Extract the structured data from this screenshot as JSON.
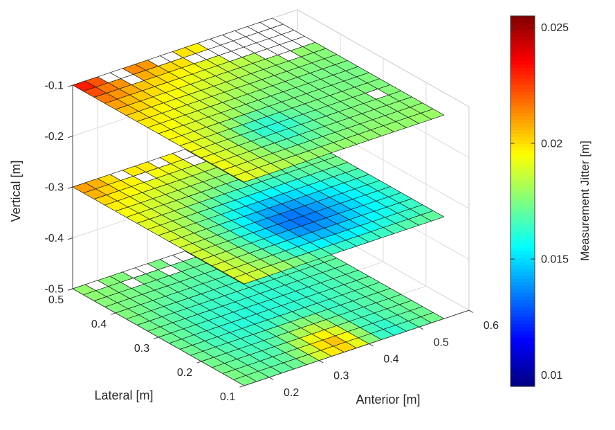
{
  "figure": {
    "title": "",
    "background": "#ffffff",
    "colors": {
      "mesh_edge": "#1b1b1b",
      "nan_cell": "#ffffff",
      "grid_line": "#dadada",
      "box_edge": "#cfcfcf",
      "axis_ruler": "#3f3f3f",
      "text": "#262626"
    }
  },
  "chart_data": {
    "type": "heatmap",
    "subtype": "3d_horizontal_slice_surfaces",
    "title": "",
    "view": {
      "azimuth_deg": -37.5,
      "elevation_deg": 30
    },
    "axes": {
      "x": {
        "label": "Anterior [m]",
        "ticks": [
          0.2,
          0.3,
          0.4,
          0.5,
          0.6
        ],
        "lim": [
          0.15,
          0.6
        ]
      },
      "y": {
        "label": "Lateral [m]",
        "ticks": [
          0.1,
          0.2,
          0.3,
          0.4,
          0.5
        ],
        "lim": [
          0.1,
          0.5
        ]
      },
      "z": {
        "label": "Vertical [m]",
        "ticks": [
          -0.5,
          -0.4,
          -0.3,
          -0.2,
          -0.1
        ],
        "lim": [
          -0.5,
          -0.1
        ]
      }
    },
    "colorbar": {
      "label": "Measurement Jitter [m]",
      "ticks": [
        0.01,
        0.015,
        0.02,
        0.025
      ],
      "clim": [
        0.0095,
        0.0255
      ],
      "colormap": "jet",
      "location": "right"
    },
    "grid_cells": {
      "n_rows": 16,
      "n_cols": 16,
      "row0_lateral_edge": 0.5,
      "lateral_step": -0.025,
      "col0_anterior_edge": 0.15,
      "anterior_step": 0.025,
      "row_order": "lateral descending (0.5 -> 0.1)",
      "col_order": "anterior ascending (0.15 -> 0.55)",
      "null_means": "no data (white cell)"
    },
    "slices": [
      {
        "vertical_m": -0.1,
        "values": [
          [
            0.0231,
            0.0222,
            null,
            null,
            0.0213,
            0.0211,
            null,
            null,
            0.0199,
            0.0197,
            null,
            null,
            null,
            null,
            null,
            null
          ],
          [
            0.0223,
            0.0216,
            0.0212,
            null,
            0.0208,
            0.0204,
            0.0201,
            0.0199,
            null,
            null,
            null,
            null,
            null,
            null,
            null,
            null
          ],
          [
            0.0216,
            0.0212,
            0.0208,
            0.0204,
            0.0201,
            0.0199,
            0.0196,
            0.0194,
            0.0191,
            0.0189,
            null,
            null,
            null,
            null,
            null,
            null
          ],
          [
            0.021,
            0.0206,
            0.0203,
            0.02,
            0.0197,
            0.0195,
            0.0192,
            0.019,
            0.0188,
            0.0186,
            0.0184,
            0.0182,
            null,
            null,
            null,
            null
          ],
          [
            0.0205,
            0.0202,
            0.0199,
            0.0196,
            0.0194,
            0.0191,
            0.0189,
            0.0187,
            0.0185,
            0.0183,
            0.0181,
            0.018,
            0.0179,
            null,
            0.0178,
            0.0177
          ],
          [
            0.0201,
            0.0198,
            0.0196,
            0.0193,
            0.0191,
            0.0188,
            0.0186,
            0.0184,
            0.0182,
            0.018,
            0.0179,
            0.0178,
            0.0177,
            0.0177,
            0.0176,
            0.0176
          ],
          [
            0.0198,
            0.0196,
            0.0193,
            0.019,
            0.0188,
            0.0186,
            0.0183,
            0.0181,
            0.018,
            0.0178,
            0.0177,
            0.0176,
            0.0176,
            0.0175,
            0.0175,
            0.0175
          ],
          [
            0.0196,
            0.0194,
            0.0191,
            0.0188,
            0.0185,
            0.0183,
            0.018,
            0.0178,
            0.0177,
            0.0176,
            0.0175,
            0.0175,
            0.0174,
            0.0174,
            0.0174,
            0.0174
          ],
          [
            0.0195,
            0.0192,
            0.0189,
            0.0186,
            0.0183,
            0.018,
            0.0177,
            0.0175,
            0.0174,
            0.0174,
            0.0174,
            0.0174,
            0.0174,
            0.0174,
            0.0174,
            0.0174
          ],
          [
            0.0194,
            0.0191,
            0.0187,
            0.0183,
            0.0178,
            0.0173,
            0.017,
            0.0171,
            0.0173,
            0.0174,
            0.0174,
            0.0174,
            0.0174,
            0.0174,
            0.0174,
            0.0175
          ],
          [
            0.0193,
            0.0189,
            0.0185,
            0.0179,
            0.0171,
            0.0165,
            0.0163,
            0.0166,
            0.017,
            0.0172,
            0.0174,
            0.0174,
            0.0175,
            0.0175,
            0.0175,
            0.0175
          ],
          [
            0.0192,
            0.0188,
            0.0184,
            0.0177,
            0.0169,
            0.0163,
            0.0161,
            0.0164,
            0.0168,
            0.0171,
            0.0173,
            0.0174,
            0.0175,
            0.0175,
            null,
            0.0176
          ],
          [
            0.0192,
            0.0188,
            0.0184,
            0.0178,
            0.0171,
            0.0166,
            0.0164,
            0.0167,
            0.017,
            0.0173,
            0.0174,
            0.0175,
            0.0175,
            0.0176,
            0.0176,
            0.0176
          ],
          [
            0.0192,
            0.0188,
            0.0184,
            0.0179,
            0.0174,
            0.017,
            0.0168,
            0.017,
            0.0172,
            0.0174,
            0.0175,
            0.0176,
            0.0176,
            0.0176,
            0.0177,
            0.0177
          ],
          [
            0.0191,
            0.0188,
            0.0185,
            0.0181,
            0.0178,
            0.0175,
            0.0173,
            0.0174,
            0.0175,
            0.0176,
            0.0176,
            0.0177,
            0.0177,
            0.0177,
            0.0178,
            0.0178
          ],
          [
            0.0191,
            0.0189,
            0.0186,
            0.0183,
            0.0181,
            0.0179,
            0.0178,
            0.0178,
            0.0178,
            0.0178,
            0.0178,
            0.0178,
            0.0178,
            0.0178,
            0.0179,
            0.0179
          ]
        ]
      },
      {
        "vertical_m": -0.3,
        "values": [
          [
            0.021,
            0.0207,
            0.02,
            null,
            0.0198,
            0.0198,
            null,
            0.0196,
            null,
            null,
            null,
            null,
            null,
            null,
            null,
            null
          ],
          [
            0.0207,
            0.0202,
            0.0198,
            0.0196,
            null,
            0.0194,
            0.0192,
            0.0191,
            null,
            0.0188,
            null,
            null,
            null,
            null,
            null,
            null
          ],
          [
            0.0201,
            0.0198,
            0.0195,
            0.0193,
            0.0191,
            0.0189,
            0.0188,
            0.0186,
            0.0185,
            0.0183,
            null,
            null,
            0.018,
            null,
            null,
            null
          ],
          [
            0.0197,
            0.0194,
            0.0191,
            0.0189,
            0.0187,
            0.0185,
            0.0183,
            0.0181,
            0.018,
            0.0179,
            0.0178,
            0.0177,
            null,
            null,
            0.0176,
            0.0176
          ],
          [
            0.0194,
            0.0191,
            0.0188,
            0.0186,
            0.0183,
            0.0181,
            0.0179,
            0.0177,
            0.0176,
            0.0175,
            0.0174,
            0.0173,
            0.0173,
            0.0173,
            0.0174,
            0.0174
          ],
          [
            0.0192,
            0.0189,
            0.0186,
            0.0183,
            0.018,
            0.0177,
            0.0174,
            0.0172,
            0.017,
            0.0169,
            0.0169,
            0.0169,
            0.017,
            0.0171,
            0.0172,
            0.0173
          ],
          [
            0.019,
            0.0187,
            0.0183,
            0.0179,
            0.0174,
            0.017,
            0.0166,
            0.0164,
            0.0163,
            0.0163,
            0.0164,
            0.0166,
            0.0168,
            0.017,
            0.0172,
            0.0173
          ],
          [
            0.0189,
            0.0185,
            0.0181,
            0.0175,
            0.017,
            0.0164,
            0.0159,
            0.0156,
            0.0154,
            0.0155,
            0.0157,
            0.0159,
            0.0162,
            0.0165,
            0.0167,
            0.0169
          ],
          [
            0.0188,
            0.0184,
            0.0179,
            0.0172,
            0.0166,
            0.0158,
            0.0152,
            0.0148,
            0.0146,
            0.0147,
            0.015,
            0.0153,
            0.0157,
            0.016,
            0.0163,
            0.0166
          ],
          [
            0.0188,
            0.0183,
            0.0177,
            0.017,
            0.0162,
            0.0154,
            0.0146,
            0.0141,
            0.0139,
            0.014,
            0.0144,
            0.0148,
            0.0152,
            0.0156,
            0.016,
            0.0163
          ],
          [
            0.0187,
            0.0182,
            0.0176,
            0.0169,
            0.016,
            0.0151,
            0.0142,
            0.0136,
            0.0134,
            0.0136,
            0.014,
            0.0145,
            0.015,
            0.0154,
            0.0158,
            0.0162
          ],
          [
            0.0187,
            0.0182,
            0.0176,
            0.0168,
            0.016,
            0.015,
            0.0141,
            0.0135,
            0.0133,
            0.0135,
            0.0139,
            0.0144,
            0.0149,
            0.0154,
            0.0158,
            0.0162
          ],
          [
            0.0187,
            0.0183,
            0.0177,
            0.017,
            0.0162,
            0.0153,
            0.0145,
            0.0139,
            0.0137,
            0.0139,
            0.0142,
            0.0147,
            0.0151,
            0.0155,
            0.0159,
            0.0162
          ],
          [
            0.0188,
            0.0184,
            0.0178,
            0.0172,
            0.0165,
            0.0158,
            0.0151,
            0.0146,
            0.0144,
            0.0145,
            0.0148,
            0.0151,
            0.0155,
            0.0158,
            0.0161,
            0.0164
          ],
          [
            0.0188,
            0.0185,
            0.018,
            0.0175,
            0.0169,
            0.0163,
            0.0158,
            0.0154,
            0.0152,
            0.0153,
            0.0155,
            0.0157,
            0.016,
            0.0162,
            0.0164,
            0.0166
          ],
          [
            0.0189,
            0.0186,
            0.0183,
            0.0179,
            0.0175,
            0.0171,
            0.0167,
            0.0164,
            0.0162,
            0.0162,
            0.0163,
            0.0164,
            0.0166,
            0.0168,
            0.0169,
            0.017
          ]
        ]
      },
      {
        "vertical_m": -0.5,
        "values": [
          [
            0.0178,
            null,
            0.0176,
            0.0175,
            null,
            null,
            0.0174,
            null,
            null,
            0.0173,
            null,
            null,
            null,
            0.0174,
            null,
            null
          ],
          [
            0.0177,
            0.0176,
            0.0175,
            null,
            0.0174,
            0.0173,
            null,
            0.0172,
            0.0172,
            null,
            0.0172,
            null,
            0.0172,
            null,
            null,
            0.0174
          ],
          [
            0.0176,
            0.0175,
            0.0174,
            0.0173,
            0.0172,
            0.0171,
            0.0171,
            0.017,
            0.017,
            0.017,
            null,
            0.017,
            0.0171,
            0.0171,
            0.0172,
            null
          ],
          [
            0.0175,
            0.0174,
            0.0173,
            0.0172,
            0.0171,
            0.017,
            0.0169,
            0.0169,
            0.0168,
            0.0168,
            0.0169,
            0.0169,
            0.017,
            0.017,
            0.0171,
            0.0172
          ],
          [
            0.0175,
            0.0173,
            0.0171,
            0.017,
            0.0169,
            0.0168,
            0.0167,
            0.0167,
            0.0166,
            0.0167,
            0.0167,
            0.0168,
            0.0168,
            0.0169,
            0.017,
            0.0171
          ],
          [
            0.0174,
            0.0172,
            0.017,
            0.0168,
            0.0167,
            0.0166,
            0.0165,
            0.0165,
            0.0165,
            0.0165,
            0.0165,
            0.0166,
            0.0167,
            0.0168,
            0.0169,
            0.017
          ],
          [
            0.0173,
            0.0171,
            0.0169,
            0.0167,
            0.0165,
            0.0164,
            0.0164,
            0.0163,
            0.0163,
            0.0163,
            0.0164,
            0.0165,
            0.0166,
            0.0167,
            0.0168,
            0.017
          ],
          [
            0.0173,
            0.017,
            0.0168,
            0.0165,
            0.0164,
            0.0163,
            0.0162,
            0.0162,
            0.0162,
            0.0162,
            0.0163,
            0.0164,
            0.0165,
            0.0166,
            0.0168,
            0.0169
          ],
          [
            0.0172,
            0.017,
            0.0167,
            0.0164,
            0.0163,
            0.0162,
            0.0161,
            0.0161,
            0.0161,
            0.0162,
            0.0162,
            0.0163,
            0.0165,
            0.0166,
            0.0168,
            0.0169
          ],
          [
            0.0172,
            0.0169,
            0.0166,
            0.0164,
            0.0162,
            0.0161,
            0.0161,
            0.0162,
            0.0162,
            0.0162,
            0.0163,
            0.0164,
            0.0165,
            0.0167,
            0.0168,
            0.017
          ],
          [
            0.0172,
            0.0169,
            0.0166,
            0.0164,
            0.0163,
            0.0163,
            0.0164,
            0.0166,
            0.0167,
            0.0166,
            0.0165,
            0.0164,
            0.0166,
            0.0167,
            0.0169,
            0.017
          ],
          [
            0.0172,
            0.017,
            0.0167,
            0.0165,
            0.0164,
            0.0166,
            0.017,
            0.0174,
            0.0176,
            0.0174,
            0.0169,
            0.0165,
            0.0166,
            0.0168,
            0.0169,
            0.0171
          ],
          [
            0.0173,
            0.017,
            0.0168,
            0.0166,
            0.0166,
            0.0169,
            0.0175,
            0.0182,
            0.0185,
            0.0181,
            0.0172,
            0.0166,
            0.0166,
            0.0168,
            0.017,
            0.0171
          ],
          [
            0.0173,
            0.0171,
            0.0169,
            0.0167,
            0.0168,
            0.0173,
            0.0182,
            0.0192,
            0.0196,
            0.0189,
            0.0176,
            0.0166,
            0.0165,
            0.0168,
            0.017,
            0.0172
          ],
          [
            0.0174,
            0.0172,
            0.017,
            0.0169,
            0.017,
            0.0176,
            0.0187,
            0.0199,
            0.0204,
            0.0194,
            0.0178,
            0.0165,
            0.0163,
            0.0167,
            0.017,
            0.0172
          ],
          [
            0.0174,
            0.0173,
            0.0171,
            0.017,
            0.0172,
            0.0178,
            0.0188,
            0.0198,
            0.0201,
            0.0191,
            0.0176,
            0.0164,
            0.0162,
            0.0166,
            0.017,
            0.0173
          ]
        ]
      }
    ]
  }
}
